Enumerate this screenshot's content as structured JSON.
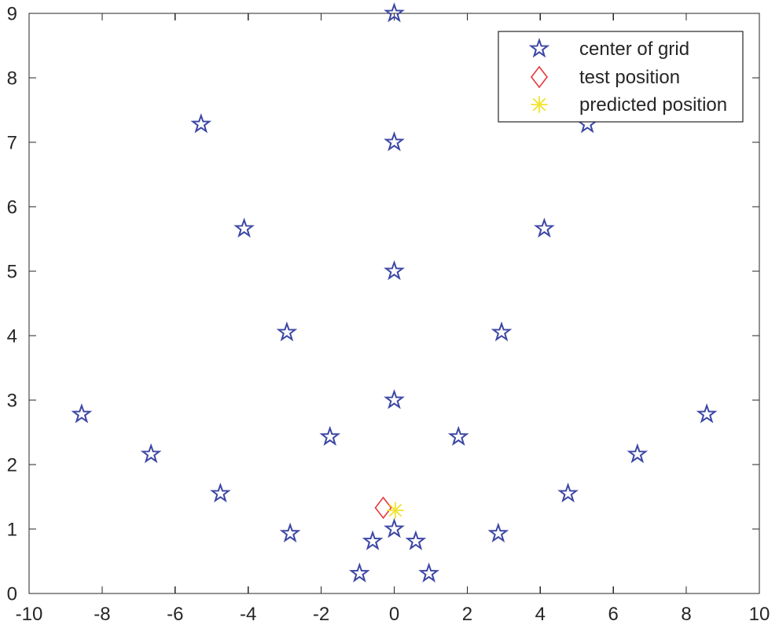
{
  "chart_data": {
    "type": "scatter",
    "xlim": [
      -10,
      10
    ],
    "ylim": [
      0,
      9
    ],
    "xticks": [
      -10,
      -8,
      -6,
      -4,
      -2,
      0,
      2,
      4,
      6,
      8,
      10
    ],
    "yticks": [
      0,
      1,
      2,
      3,
      4,
      5,
      6,
      7,
      8,
      9
    ],
    "grid": false,
    "legend": "top-right",
    "series": [
      {
        "name": "center of grid",
        "marker": "pentagram",
        "color": "#3c46a4",
        "x": [
          0,
          -0.59,
          0.59,
          -0.95,
          0.95,
          0,
          -1.76,
          1.76,
          -2.85,
          2.85,
          0,
          -2.94,
          2.94,
          -4.76,
          4.76,
          0,
          -4.11,
          4.11,
          -6.66,
          6.66,
          0,
          -5.29,
          5.29,
          -8.56,
          8.56
        ],
        "y": [
          1,
          0.81,
          0.81,
          0.31,
          0.31,
          3,
          2.43,
          2.43,
          0.93,
          0.93,
          5,
          4.05,
          4.05,
          1.55,
          1.55,
          7,
          5.66,
          5.66,
          2.16,
          2.16,
          9,
          7.28,
          7.28,
          2.78,
          2.78
        ]
      },
      {
        "name": "test position",
        "marker": "diamond",
        "color": "#e8363b",
        "x": [
          -0.3
        ],
        "y": [
          1.33
        ]
      },
      {
        "name": "predicted position",
        "marker": "asterisk",
        "color": "#f2e32c",
        "x": [
          0.03
        ],
        "y": [
          1.29
        ]
      }
    ]
  }
}
